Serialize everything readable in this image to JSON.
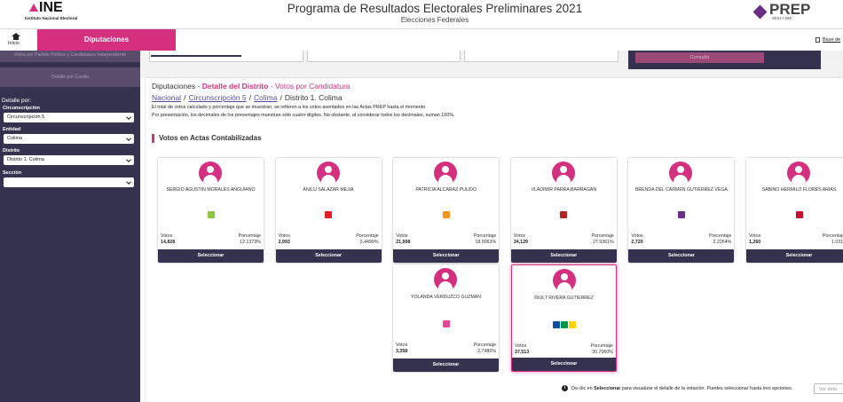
{
  "header": {
    "logo": "INE",
    "logo_subtitle": "Instituto Nacional Electoral",
    "title": "Programa de Resultados Electorales Preliminares 2021",
    "subtitle": "Elecciones Federales",
    "prep_logo": "PREP",
    "prep_subtitle": "2021 • MX"
  },
  "nav": {
    "home": "Inicio",
    "tab": "Diputaciones",
    "right_link": "Base de"
  },
  "sidebar": {
    "buttons": [
      "Votos por Partido Político y Candidatura Independiente",
      "Detalle por Casilla"
    ],
    "filter_title": "Detalle por:",
    "filters": [
      {
        "label": "Circunscripción",
        "value": "Circunscripción 5"
      },
      {
        "label": "Entidad",
        "value": "Colima"
      },
      {
        "label": "Distrito",
        "value": "Distrito 1. Colima"
      },
      {
        "label": "Sección"
      }
    ]
  },
  "top_panel": {
    "button": "Consulta"
  },
  "main": {
    "heading_prefix": "Diputaciones - ",
    "heading_highlight": "Detalle del Distrito",
    "heading_suffix": "- Votos por Candidatura",
    "breadcrumb": [
      "Nacional",
      "Circunscripción 5",
      "Colima",
      "Distrito 1. Colima"
    ],
    "separator": "/",
    "notes": [
      "El total de votos calculado y porcentaje que se muestran, se refieren a los votos asentados en las Actas PREP hasta el momento.",
      "Por presentación, los decimales de los porcentajes muestran sólo cuatro dígitos. No obstante, al considerar todos los decimales, suman 100%."
    ],
    "section_title": "Votos en Actas Contabilizadas",
    "labels": {
      "votes": "Votos",
      "percent": "Porcentaje",
      "select": "Seleccionar"
    },
    "candidates": [
      {
        "name": "SERGIO AGUSTIN MORALES ANGUIANO",
        "votes": "14,828",
        "percent": "12.1373%",
        "logo_colors": [
          "#8cc63f"
        ]
      },
      {
        "name": "ANILU SALAZAR MEJIA",
        "votes": "2,993",
        "percent": "2.4499%",
        "logo_colors": [
          "#e31e24"
        ]
      },
      {
        "name": "PATRICIA ALCARAZ PULIDO",
        "votes": "21,998",
        "percent": "18.0063%",
        "logo_colors": [
          "#f7941d"
        ]
      },
      {
        "name": "VLADIMIR PARRA BARRAGAN",
        "votes": "34,129",
        "percent": "27.9361%",
        "logo_colors": [
          "#b5261e"
        ]
      },
      {
        "name": "BRENDA DEL CARMEN GUTIERREZ VEGA",
        "votes": "2,720",
        "percent": "2.2264%",
        "logo_colors": [
          "#6b2d85"
        ]
      },
      {
        "name": "SABINO HERMILO FLORES ARIAS",
        "votes": "1,260",
        "percent": "1.031",
        "logo_colors": [
          "#c8102e"
        ]
      },
      {
        "name": "YOLANDA VERDUZCO GUZMAN",
        "votes": "3,358",
        "percent": "2.7486%",
        "logo_colors": [
          "#e8479a"
        ]
      },
      {
        "name": "RIULT RIVERA GUTIERREZ",
        "votes": "37,513",
        "percent": "30.7060%",
        "logo_colors": [
          "#0b4fa3",
          "#009a44",
          "#ffd200"
        ],
        "selected": true
      }
    ],
    "footer_note_prefix": "Da clic en ",
    "footer_note_bold": "Seleccionar",
    "footer_note_suffix": " para visualizar el detalle de la votación. Puedes seleccionar hasta tres opciones.",
    "footer_button": "Ver deta"
  }
}
